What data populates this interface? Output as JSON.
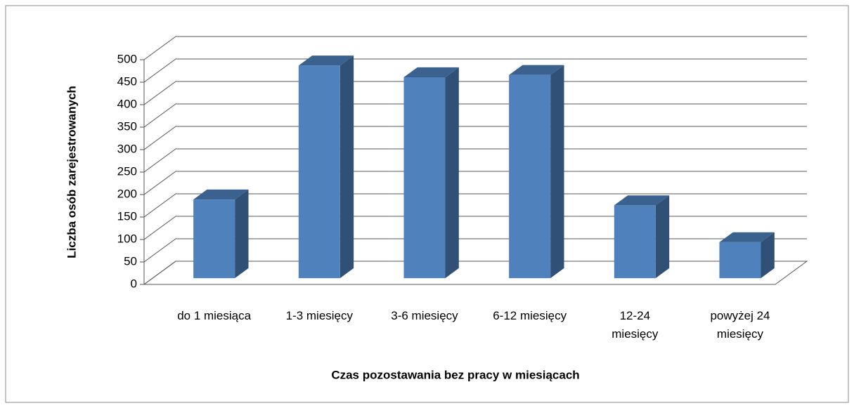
{
  "chart_data": {
    "type": "bar3d",
    "x_label": "Czas pozostawania bez pracy w miesiącach",
    "y_label": "Liczba osób zarejestrowanych",
    "categories": [
      "do 1 miesiąca",
      "1-3 miesięcy",
      "3-6 miesięcy",
      "6-12 miesięcy",
      "12-24 miesięcy",
      "powyżej 24 miesięcy"
    ],
    "values": [
      175,
      473,
      447,
      452,
      162,
      80
    ],
    "color": "#4f81bd",
    "ylim": [
      0,
      500
    ],
    "yticks": [
      0,
      50,
      100,
      150,
      200,
      250,
      300,
      350,
      400,
      450,
      500
    ],
    "grid": true
  }
}
